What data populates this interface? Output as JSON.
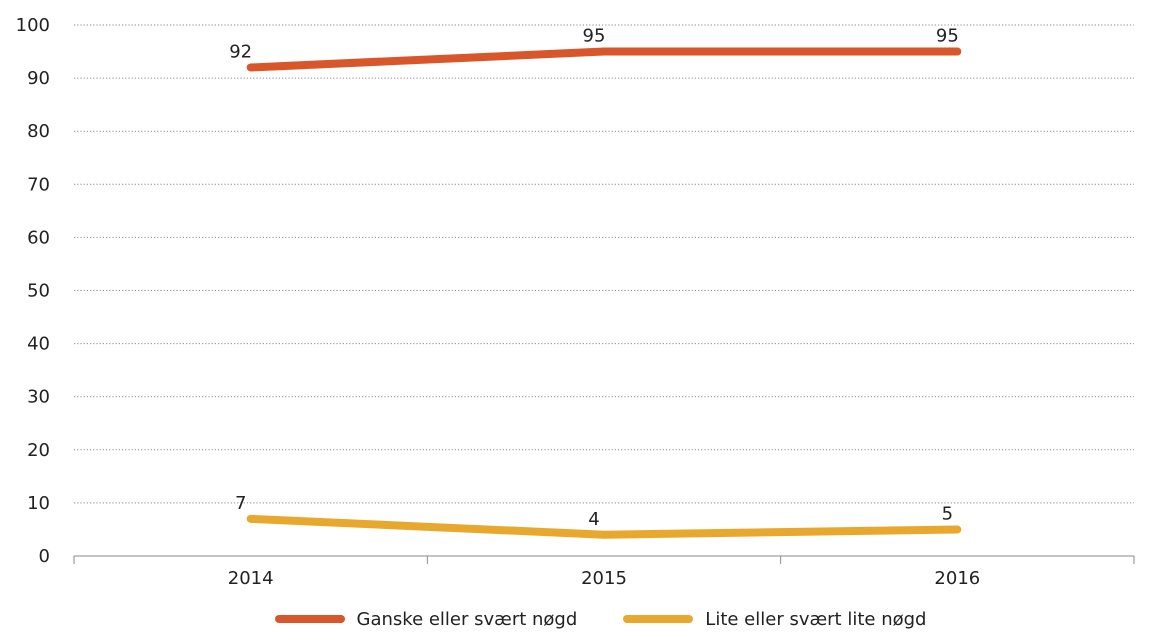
{
  "chart_data": {
    "type": "line",
    "x": [
      "2014",
      "2015",
      "2016"
    ],
    "yticks": [
      "0",
      "10",
      "20",
      "30",
      "40",
      "50",
      "60",
      "70",
      "80",
      "90",
      "100"
    ],
    "ylim": [
      0,
      100
    ],
    "grid": true,
    "legend_position": "bottom-center",
    "series": [
      {
        "name": "Ganske eller svært nøgd",
        "values": [
          92,
          95,
          95
        ],
        "labels": [
          "92",
          "95",
          "95"
        ],
        "color": "#d9562a"
      },
      {
        "name": "Lite eller svært lite nøgd",
        "values": [
          7,
          4,
          5
        ],
        "labels": [
          "7",
          "4",
          "5"
        ],
        "color": "#e8a82e"
      }
    ]
  }
}
